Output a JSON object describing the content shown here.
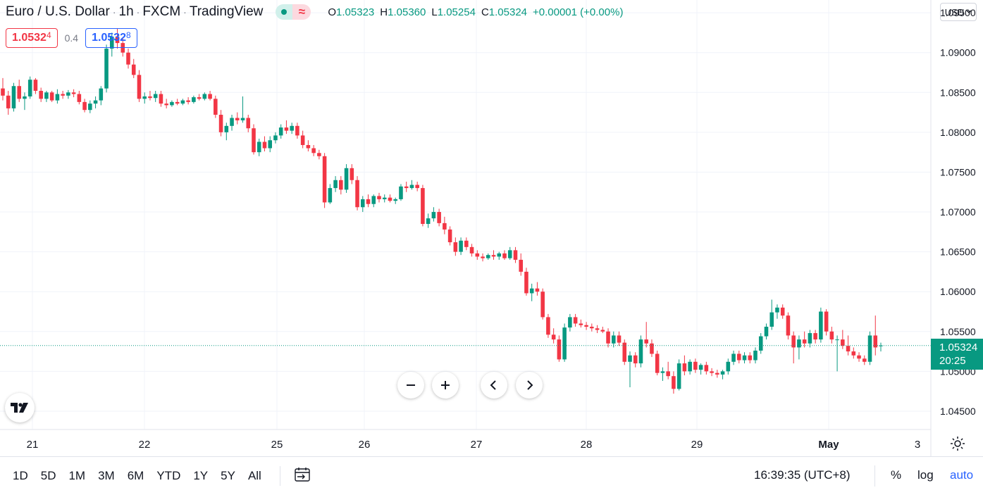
{
  "header": {
    "symbol": "Euro / U.S. Dollar",
    "interval": "1h",
    "exchange": "FXCM",
    "source": "TradingView",
    "ohlc": {
      "o_label": "O",
      "o": "1.05323",
      "h_label": "H",
      "h": "1.05360",
      "l_label": "L",
      "l": "1.05254",
      "c_label": "C",
      "c": "1.05324",
      "change": "+0.00001 (+0.00%)"
    },
    "status_icon": "market-open-dot",
    "delay_icon": "≈"
  },
  "trade": {
    "sell_main": "1.0532",
    "sell_sup": "4",
    "spread": "0.4",
    "buy_main": "1.0532",
    "buy_sup": "8"
  },
  "currency_selector": {
    "label": "USD"
  },
  "price_tag": {
    "price": "1.05324",
    "countdown": "20:25"
  },
  "bottom_bar": {
    "ranges": [
      "1D",
      "5D",
      "1M",
      "3M",
      "6M",
      "YTD",
      "1Y",
      "5Y",
      "All"
    ],
    "goto_icon": "date-range-icon",
    "clock": "16:39:35 (UTC+8)",
    "percent": "%",
    "log": "log",
    "auto": "auto"
  },
  "colors": {
    "up": "#089981",
    "down": "#f23645",
    "grid": "#f0f3fa",
    "text": "#131722",
    "accent": "#2962ff"
  },
  "chart_data": {
    "type": "candlestick",
    "title": "Euro / U.S. Dollar · 1h · FXCM",
    "y_ticks": [
      "1.09500",
      "1.09000",
      "1.08500",
      "1.08000",
      "1.07500",
      "1.07000",
      "1.06500",
      "1.06000",
      "1.05500",
      "1.05000",
      "1.04500"
    ],
    "ylim": [
      1.0427,
      1.0966
    ],
    "x_ticks": [
      "21",
      "22",
      "25",
      "26",
      "27",
      "28",
      "29",
      "May",
      "3"
    ],
    "last_price": 1.05324,
    "candles": [
      [
        1.0855,
        1.0868,
        1.084,
        1.0846
      ],
      [
        1.0846,
        1.0852,
        1.0822,
        1.083
      ],
      [
        1.083,
        1.0862,
        1.0826,
        1.0858
      ],
      [
        1.0858,
        1.0866,
        1.0838,
        1.0842
      ],
      [
        1.0842,
        1.085,
        1.0828,
        1.0845
      ],
      [
        1.0845,
        1.087,
        1.0842,
        1.0866
      ],
      [
        1.0866,
        1.0868,
        1.0848,
        1.0852
      ],
      [
        1.0852,
        1.0856,
        1.0838,
        1.0842
      ],
      [
        1.0842,
        1.0852,
        1.0838,
        1.085
      ],
      [
        1.085,
        1.0852,
        1.0838,
        1.084
      ],
      [
        1.084,
        1.0854,
        1.0836,
        1.0848
      ],
      [
        1.0848,
        1.0852,
        1.0842,
        1.0846
      ],
      [
        1.0846,
        1.0853,
        1.0842,
        1.085
      ],
      [
        1.085,
        1.0854,
        1.0844,
        1.0848
      ],
      [
        1.0848,
        1.0852,
        1.0835,
        1.0838
      ],
      [
        1.0838,
        1.0842,
        1.0825,
        1.0828
      ],
      [
        1.0828,
        1.084,
        1.0824,
        1.0836
      ],
      [
        1.0836,
        1.0845,
        1.083,
        1.084
      ],
      [
        1.084,
        1.0858,
        1.0834,
        1.0855
      ],
      [
        1.0855,
        1.091,
        1.085,
        1.0905
      ],
      [
        1.0905,
        1.0925,
        1.0895,
        1.092
      ],
      [
        1.092,
        1.093,
        1.0905,
        1.0912
      ],
      [
        1.0912,
        1.0918,
        1.0895,
        1.09
      ],
      [
        1.09,
        1.0905,
        1.088,
        1.0885
      ],
      [
        1.0885,
        1.0892,
        1.0868,
        1.0872
      ],
      [
        1.0872,
        1.0878,
        1.0838,
        1.0842
      ],
      [
        1.0842,
        1.085,
        1.0836,
        1.0845
      ],
      [
        1.0845,
        1.0852,
        1.084,
        1.0843
      ],
      [
        1.0843,
        1.0852,
        1.0838,
        1.0848
      ],
      [
        1.0848,
        1.0852,
        1.0832,
        1.0836
      ],
      [
        1.0836,
        1.0842,
        1.083,
        1.0834
      ],
      [
        1.0834,
        1.084,
        1.0832,
        1.0838
      ],
      [
        1.0838,
        1.0842,
        1.0834,
        1.0836
      ],
      [
        1.0836,
        1.0842,
        1.0834,
        1.084
      ],
      [
        1.084,
        1.0844,
        1.0835,
        1.0838
      ],
      [
        1.0838,
        1.0846,
        1.0836,
        1.0844
      ],
      [
        1.0844,
        1.0848,
        1.084,
        1.0842
      ],
      [
        1.0842,
        1.085,
        1.084,
        1.0848
      ],
      [
        1.0848,
        1.0852,
        1.084,
        1.0842
      ],
      [
        1.0842,
        1.0846,
        1.0818,
        1.0822
      ],
      [
        1.0822,
        1.0828,
        1.0795,
        1.08
      ],
      [
        1.08,
        1.0812,
        1.079,
        1.0808
      ],
      [
        1.0808,
        1.0822,
        1.0802,
        1.0818
      ],
      [
        1.0818,
        1.0825,
        1.081,
        1.0815
      ],
      [
        1.0815,
        1.0845,
        1.0812,
        1.0818
      ],
      [
        1.0818,
        1.0822,
        1.08,
        1.0805
      ],
      [
        1.0805,
        1.081,
        1.0772,
        1.0775
      ],
      [
        1.0775,
        1.0792,
        1.077,
        1.0788
      ],
      [
        1.0788,
        1.0795,
        1.0776,
        1.078
      ],
      [
        1.078,
        1.0795,
        1.0775,
        1.079
      ],
      [
        1.079,
        1.08,
        1.0786,
        1.0796
      ],
      [
        1.0796,
        1.081,
        1.0792,
        1.0806
      ],
      [
        1.0806,
        1.0815,
        1.0798,
        1.0802
      ],
      [
        1.0802,
        1.0812,
        1.0798,
        1.0808
      ],
      [
        1.0808,
        1.0812,
        1.0792,
        1.0796
      ],
      [
        1.0796,
        1.0802,
        1.078,
        1.0784
      ],
      [
        1.0784,
        1.079,
        1.0776,
        1.078
      ],
      [
        1.078,
        1.0784,
        1.077,
        1.0774
      ],
      [
        1.0774,
        1.0778,
        1.0766,
        1.077
      ],
      [
        1.077,
        1.0774,
        1.0705,
        1.0712
      ],
      [
        1.0712,
        1.0735,
        1.071,
        1.073
      ],
      [
        1.073,
        1.0745,
        1.0725,
        1.074
      ],
      [
        1.074,
        1.0745,
        1.0722,
        1.0728
      ],
      [
        1.0728,
        1.076,
        1.0724,
        1.0755
      ],
      [
        1.0755,
        1.076,
        1.0735,
        1.074
      ],
      [
        1.074,
        1.0745,
        1.0702,
        1.0706
      ],
      [
        1.0706,
        1.072,
        1.07,
        1.0716
      ],
      [
        1.0716,
        1.0722,
        1.0706,
        1.071
      ],
      [
        1.071,
        1.0722,
        1.0706,
        1.072
      ],
      [
        1.072,
        1.0724,
        1.0712,
        1.0716
      ],
      [
        1.0716,
        1.0722,
        1.0712,
        1.0718
      ],
      [
        1.0718,
        1.0722,
        1.0712,
        1.0714
      ],
      [
        1.0714,
        1.0718,
        1.071,
        1.0716
      ],
      [
        1.0716,
        1.0735,
        1.0714,
        1.0732
      ],
      [
        1.0732,
        1.0738,
        1.0725,
        1.073
      ],
      [
        1.073,
        1.074,
        1.0728,
        1.0734
      ],
      [
        1.0734,
        1.0738,
        1.0726,
        1.073
      ],
      [
        1.073,
        1.0734,
        1.0682,
        1.0685
      ],
      [
        1.0685,
        1.0698,
        1.068,
        1.0692
      ],
      [
        1.0692,
        1.0706,
        1.0688,
        1.07
      ],
      [
        1.07,
        1.0704,
        1.0682,
        1.0686
      ],
      [
        1.0686,
        1.0694,
        1.0672,
        1.0678
      ],
      [
        1.0678,
        1.0682,
        1.0658,
        1.0662
      ],
      [
        1.0662,
        1.0668,
        1.0645,
        1.065
      ],
      [
        1.065,
        1.0668,
        1.0646,
        1.0664
      ],
      [
        1.0664,
        1.0668,
        1.0652,
        1.0656
      ],
      [
        1.0656,
        1.066,
        1.0644,
        1.0648
      ],
      [
        1.0648,
        1.0652,
        1.064,
        1.0644
      ],
      [
        1.0644,
        1.0648,
        1.0638,
        1.0642
      ],
      [
        1.0642,
        1.0648,
        1.064,
        1.0646
      ],
      [
        1.0646,
        1.0652,
        1.064,
        1.0644
      ],
      [
        1.0644,
        1.065,
        1.064,
        1.0648
      ],
      [
        1.0648,
        1.0652,
        1.064,
        1.0642
      ],
      [
        1.0642,
        1.0656,
        1.064,
        1.0652
      ],
      [
        1.0652,
        1.0656,
        1.0636,
        1.064
      ],
      [
        1.064,
        1.0648,
        1.062,
        1.0625
      ],
      [
        1.0625,
        1.063,
        1.0595,
        1.0598
      ],
      [
        1.0598,
        1.061,
        1.0588,
        1.0604
      ],
      [
        1.0604,
        1.0612,
        1.0595,
        1.06
      ],
      [
        1.06,
        1.0604,
        1.0565,
        1.0568
      ],
      [
        1.0568,
        1.0572,
        1.0542,
        1.0546
      ],
      [
        1.0546,
        1.0554,
        1.0535,
        1.054
      ],
      [
        1.054,
        1.0545,
        1.0512,
        1.0515
      ],
      [
        1.0515,
        1.056,
        1.0512,
        1.0555
      ],
      [
        1.0555,
        1.0572,
        1.055,
        1.0568
      ],
      [
        1.0568,
        1.0572,
        1.0556,
        1.056
      ],
      [
        1.056,
        1.0565,
        1.0555,
        1.0558
      ],
      [
        1.0558,
        1.0562,
        1.0552,
        1.0556
      ],
      [
        1.0556,
        1.056,
        1.055,
        1.0554
      ],
      [
        1.0554,
        1.0558,
        1.0548,
        1.0552
      ],
      [
        1.0552,
        1.0556,
        1.0548,
        1.055
      ],
      [
        1.055,
        1.0554,
        1.053,
        1.0535
      ],
      [
        1.0535,
        1.055,
        1.053,
        1.0545
      ],
      [
        1.0545,
        1.055,
        1.0532,
        1.0536
      ],
      [
        1.0536,
        1.054,
        1.0508,
        1.0512
      ],
      [
        1.0512,
        1.0525,
        1.048,
        1.052
      ],
      [
        1.052,
        1.0524,
        1.0505,
        1.051
      ],
      [
        1.051,
        1.0545,
        1.0505,
        1.054
      ],
      [
        1.054,
        1.0562,
        1.053,
        1.0535
      ],
      [
        1.0535,
        1.054,
        1.0518,
        1.0522
      ],
      [
        1.0522,
        1.0526,
        1.0495,
        1.0498
      ],
      [
        1.0498,
        1.0505,
        1.0488,
        1.05
      ],
      [
        1.05,
        1.0512,
        1.049,
        1.0494
      ],
      [
        1.0494,
        1.05,
        1.0472,
        1.0478
      ],
      [
        1.0478,
        1.0515,
        1.0476,
        1.051
      ],
      [
        1.051,
        1.052,
        1.0495,
        1.05
      ],
      [
        1.05,
        1.0515,
        1.0496,
        1.0512
      ],
      [
        1.0512,
        1.0516,
        1.0498,
        1.0502
      ],
      [
        1.0502,
        1.051,
        1.0496,
        1.0508
      ],
      [
        1.0508,
        1.0512,
        1.0496,
        1.05
      ],
      [
        1.05,
        1.0504,
        1.0494,
        1.0498
      ],
      [
        1.0498,
        1.0502,
        1.0492,
        1.0496
      ],
      [
        1.0496,
        1.0502,
        1.049,
        1.05
      ],
      [
        1.05,
        1.0516,
        1.0496,
        1.0512
      ],
      [
        1.0512,
        1.0526,
        1.0508,
        1.0522
      ],
      [
        1.0522,
        1.0526,
        1.051,
        1.0514
      ],
      [
        1.0514,
        1.0524,
        1.051,
        1.052
      ],
      [
        1.052,
        1.0524,
        1.051,
        1.0514
      ],
      [
        1.0514,
        1.053,
        1.051,
        1.0526
      ],
      [
        1.0526,
        1.0548,
        1.0522,
        1.0544
      ],
      [
        1.0544,
        1.056,
        1.054,
        1.0556
      ],
      [
        1.0556,
        1.059,
        1.0552,
        1.0574
      ],
      [
        1.0574,
        1.0584,
        1.0566,
        1.058
      ],
      [
        1.058,
        1.0584,
        1.0566,
        1.057
      ],
      [
        1.057,
        1.0574,
        1.054,
        1.0545
      ],
      [
        1.0545,
        1.055,
        1.051,
        1.053
      ],
      [
        1.053,
        1.0545,
        1.0515,
        1.054
      ],
      [
        1.054,
        1.055,
        1.053,
        1.0535
      ],
      [
        1.0535,
        1.0552,
        1.053,
        1.0548
      ],
      [
        1.0548,
        1.0552,
        1.0535,
        1.054
      ],
      [
        1.054,
        1.058,
        1.0536,
        1.0575
      ],
      [
        1.0575,
        1.0578,
        1.0545,
        1.055
      ],
      [
        1.055,
        1.0556,
        1.0535,
        1.054
      ],
      [
        1.054,
        1.0545,
        1.05,
        1.054
      ],
      [
        1.054,
        1.0552,
        1.0528,
        1.0532
      ],
      [
        1.0532,
        1.0545,
        1.052,
        1.0525
      ],
      [
        1.0525,
        1.053,
        1.0516,
        1.052
      ],
      [
        1.052,
        1.0524,
        1.0512,
        1.0516
      ],
      [
        1.0516,
        1.052,
        1.0508,
        1.0512
      ],
      [
        1.0512,
        1.055,
        1.0508,
        1.0545
      ],
      [
        1.0545,
        1.057,
        1.052,
        1.053
      ],
      [
        1.0532,
        1.0536,
        1.0525,
        1.05324
      ]
    ]
  }
}
